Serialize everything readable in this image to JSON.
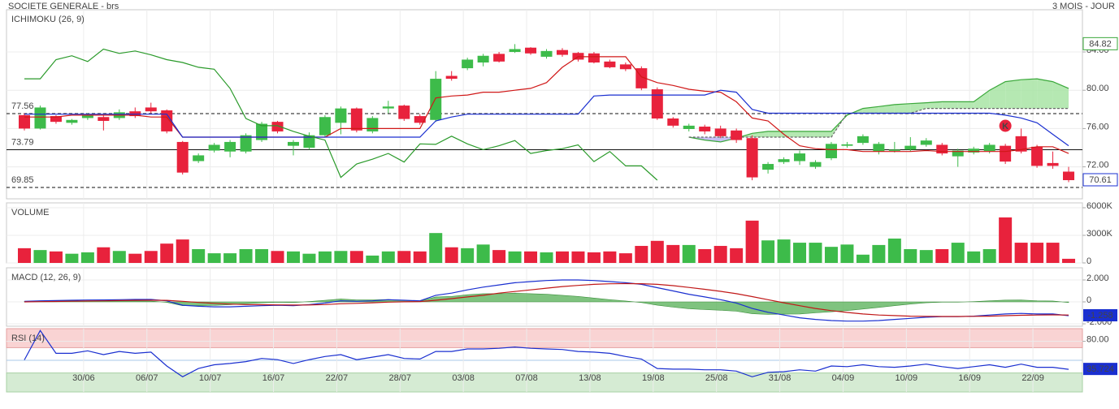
{
  "chart_data": [
    {
      "type": "candlestick",
      "title": "SOCIETE GENERALE - brs",
      "subtitle": "3 MOIS - JOUR",
      "label": "ICHIMOKU (26, 9)",
      "label_color": "#2233aa",
      "open": [
        77.4,
        76.0,
        77.3,
        76.6,
        77.1,
        77.2,
        77.1,
        77.8,
        78.2,
        77.9,
        74.6,
        72.6,
        73.7,
        73.6,
        73.6,
        74.8,
        76.7,
        74.2,
        74.0,
        75.3,
        76.6,
        78.1,
        75.7,
        78.1,
        78.4,
        77.3,
        76.9,
        81.5,
        82.3,
        82.9,
        83.8,
        84.0,
        84.45,
        83.5,
        84.2,
        83.9,
        83.85,
        83.0,
        82.7,
        82.3,
        80.1,
        77.05,
        75.95,
        76.2,
        76.0,
        75.8,
        75.0,
        71.7,
        72.5,
        72.6,
        72.0,
        72.9,
        74.2,
        74.5,
        73.6,
        73.7,
        73.8,
        74.3,
        74.3,
        73.1,
        73.5,
        73.65,
        74.2,
        75.2,
        74.1,
        72.4,
        71.5
      ],
      "high": [
        77.6,
        78.4,
        77.4,
        77.0,
        77.6,
        77.4,
        78.0,
        78.2,
        78.7,
        78.0,
        74.7,
        73.4,
        74.5,
        74.8,
        75.5,
        76.7,
        76.8,
        74.8,
        75.6,
        77.4,
        78.3,
        78.2,
        77.3,
        78.9,
        78.5,
        77.5,
        82.0,
        82.0,
        83.4,
        83.8,
        84.0,
        84.82,
        84.5,
        84.3,
        84.4,
        84.0,
        84.0,
        83.2,
        82.9,
        82.5,
        80.3,
        77.2,
        76.5,
        76.4,
        76.3,
        76.0,
        75.3,
        72.5,
        73.0,
        73.7,
        72.7,
        74.6,
        74.6,
        75.4,
        74.6,
        74.6,
        75.1,
        75.0,
        74.5,
        73.9,
        74.1,
        74.5,
        74.4,
        76.0,
        74.3,
        73.6,
        72.0
      ],
      "low": [
        75.8,
        75.9,
        76.5,
        76.4,
        76.9,
        75.8,
        76.9,
        77.1,
        77.6,
        75.5,
        71.2,
        72.4,
        73.5,
        73.0,
        73.4,
        74.6,
        75.5,
        73.2,
        73.8,
        75.1,
        75.4,
        75.6,
        75.5,
        77.6,
        76.8,
        76.4,
        76.7,
        81.0,
        82.1,
        82.5,
        82.9,
        83.9,
        83.7,
        83.3,
        83.5,
        83.0,
        82.8,
        82.3,
        82.0,
        80.0,
        76.9,
        76.1,
        75.7,
        75.4,
        75.0,
        74.5,
        70.6,
        71.3,
        72.3,
        72.2,
        71.8,
        72.7,
        74.0,
        74.3,
        73.3,
        73.5,
        73.6,
        74.1,
        73.2,
        72.0,
        73.3,
        73.4,
        72.3,
        73.4,
        71.9,
        71.8,
        70.4
      ],
      "close": [
        76.0,
        78.2,
        76.7,
        76.9,
        77.4,
        76.8,
        77.7,
        77.3,
        77.8,
        75.7,
        71.4,
        73.2,
        74.3,
        74.6,
        75.3,
        76.5,
        75.7,
        74.6,
        75.3,
        77.2,
        78.1,
        75.8,
        77.1,
        78.3,
        77.0,
        76.6,
        81.2,
        81.2,
        83.2,
        83.6,
        83.0,
        84.3,
        83.85,
        84.1,
        83.7,
        83.2,
        82.9,
        82.4,
        82.2,
        80.2,
        77.05,
        76.3,
        76.3,
        75.7,
        75.2,
        74.8,
        70.9,
        72.3,
        72.8,
        73.4,
        72.5,
        74.4,
        74.35,
        75.2,
        74.4,
        73.8,
        74.2,
        74.75,
        73.4,
        73.7,
        73.9,
        74.3,
        72.55,
        73.6,
        72.1,
        72.1,
        70.61
      ],
      "up_color": "#3dbb4a",
      "down_color": "#e8223c",
      "lines": [
        {
          "color": "#d01818",
          "values": [
            77.2,
            77.2,
            77.2,
            77.4,
            77.4,
            77.4,
            77.4,
            77.4,
            77.2,
            77.2,
            75.1,
            75.1,
            75.1,
            75.1,
            75.1,
            75.1,
            75.1,
            75.1,
            75.1,
            75.1,
            76.0,
            76.0,
            76.0,
            76.0,
            76.0,
            76.0,
            79.2,
            79.4,
            79.5,
            79.8,
            79.8,
            80.0,
            80.2,
            80.8,
            82.4,
            83.5,
            83.5,
            83.5,
            83.5,
            81.4,
            80.8,
            80.5,
            80.1,
            79.9,
            79.8,
            78.8,
            77.1,
            76.8,
            75.4,
            74.2,
            73.9,
            73.8,
            73.8,
            73.6,
            73.6,
            73.6,
            73.6,
            73.7,
            73.6,
            73.6,
            73.6,
            73.6,
            73.6,
            73.8,
            74.1,
            74.1,
            73.4
          ]
        },
        {
          "color": "#1a2fd0",
          "values": [
            77.5,
            77.5,
            77.5,
            77.5,
            77.5,
            77.5,
            77.5,
            77.5,
            77.5,
            77.5,
            75.1,
            75.1,
            75.1,
            75.1,
            75.1,
            75.1,
            75.1,
            75.1,
            75.1,
            75.1,
            75.1,
            75.1,
            75.1,
            75.1,
            75.1,
            75.1,
            76.8,
            77.2,
            77.5,
            77.5,
            77.5,
            77.5,
            77.5,
            77.5,
            77.5,
            77.5,
            79.4,
            79.5,
            79.5,
            79.5,
            79.5,
            79.5,
            79.5,
            79.5,
            80.0,
            79.8,
            78.0,
            77.6,
            77.6,
            77.6,
            77.6,
            77.6,
            77.6,
            77.6,
            77.6,
            77.6,
            77.6,
            77.6,
            77.6,
            77.6,
            77.6,
            77.6,
            77.4,
            77.1,
            76.6,
            75.4,
            74.2
          ]
        },
        {
          "color": "#2a9a2a",
          "values": [
            81.2,
            81.2,
            83.2,
            83.6,
            83.0,
            84.3,
            83.85,
            84.1,
            83.7,
            83.2,
            82.9,
            82.4,
            82.2,
            80.2,
            77.05,
            76.3,
            76.3,
            75.7,
            75.2,
            74.8,
            70.9,
            72.3,
            72.8,
            73.4,
            72.5,
            74.4,
            74.35,
            75.2,
            74.4,
            73.8,
            74.2,
            74.75,
            73.4,
            73.7,
            73.9,
            74.3,
            72.55,
            73.6,
            72.1,
            72.1,
            70.61,
            null,
            null,
            null,
            null,
            null,
            null,
            null,
            null,
            null,
            null,
            null,
            null,
            null,
            null,
            null,
            null,
            null,
            null,
            null,
            null,
            null,
            null,
            null,
            null,
            null,
            null
          ]
        }
      ],
      "cloud": {
        "span_a": [
          null,
          null,
          null,
          null,
          null,
          null,
          null,
          null,
          null,
          null,
          null,
          null,
          null,
          null,
          null,
          null,
          null,
          null,
          null,
          null,
          null,
          null,
          null,
          null,
          null,
          null,
          null,
          null,
          null,
          null,
          null,
          null,
          null,
          null,
          null,
          null,
          null,
          null,
          null,
          null,
          null,
          null,
          75.1,
          74.8,
          74.6,
          75.0,
          75.5,
          75.7,
          75.7,
          75.7,
          75.7,
          75.7,
          77.4,
          78.1,
          78.3,
          78.5,
          78.6,
          78.7,
          78.8,
          78.8,
          78.8,
          80.0,
          80.9,
          81.1,
          81.2,
          80.9,
          80.2
        ],
        "span_b": [
          null,
          null,
          null,
          null,
          null,
          null,
          null,
          null,
          null,
          null,
          null,
          null,
          null,
          null,
          null,
          null,
          null,
          null,
          null,
          null,
          null,
          null,
          null,
          null,
          null,
          null,
          null,
          null,
          null,
          null,
          null,
          null,
          null,
          null,
          null,
          null,
          null,
          null,
          null,
          null,
          null,
          null,
          75.1,
          75.1,
          75.1,
          75.1,
          75.1,
          75.1,
          75.1,
          75.1,
          75.1,
          75.1,
          77.6,
          77.6,
          77.6,
          77.6,
          77.6,
          78.1,
          78.1,
          78.1,
          78.1,
          78.1,
          78.1,
          78.1,
          78.1,
          78.1,
          78.1
        ],
        "up_color": "#a8e4a4",
        "down_color": "#bdb4f2",
        "edge_color": "#3aa83a"
      },
      "levels": [
        {
          "value": 77.56,
          "style": "dashed"
        },
        {
          "value": 73.79,
          "style": "solid"
        },
        {
          "value": 69.85,
          "style": "dashed"
        }
      ],
      "annotation": "K",
      "ylim": [
        68.66,
        88.41
      ],
      "yticks": [
        {
          "value": 72,
          "label": "72.00"
        },
        {
          "value": 76,
          "label": "76.00"
        },
        {
          "value": 80,
          "label": "80.00"
        },
        {
          "value": 84,
          "label": "84.00"
        }
      ],
      "grid": true
    },
    {
      "type": "bar",
      "label": "VOLUME",
      "label_color": "#2a9a2a",
      "values": [
        1600000,
        1400000,
        1250000,
        1000000,
        1150000,
        1700000,
        1300000,
        1000000,
        1300000,
        2100000,
        2550000,
        1500000,
        1050000,
        1050000,
        1500000,
        1500000,
        1300000,
        1250000,
        1000000,
        1250000,
        1300000,
        1300000,
        800000,
        1250000,
        1300000,
        1250000,
        3250000,
        1700000,
        1600000,
        2000000,
        1400000,
        1250000,
        1250000,
        1150000,
        1250000,
        1250000,
        1150000,
        1250000,
        1050000,
        1850000,
        2400000,
        1950000,
        1950000,
        1500000,
        1850000,
        1600000,
        4600000,
        2450000,
        2550000,
        2200000,
        2200000,
        1750000,
        2000000,
        900000,
        1950000,
        2650000,
        1500000,
        1400000,
        1500000,
        2200000,
        1250000,
        1500000,
        4950000,
        2200000,
        2200000,
        2200000,
        450000
      ],
      "ylim": [
        0,
        6530000
      ],
      "yticks": [
        0,
        {
          "value": 3000000,
          "label": "3000K"
        },
        {
          "value": 6000000,
          "label": "6000K"
        }
      ],
      "grid": true
    },
    {
      "type": "line",
      "label": "MACD (12, 26, 9)",
      "label_color": "#2233aa",
      "series": [
        {
          "color": "#1a2fd0",
          "values": [
            0.05,
            0.1,
            0.12,
            0.15,
            0.17,
            0.18,
            0.2,
            0.22,
            0.22,
            0.1,
            -0.3,
            -0.4,
            -0.45,
            -0.45,
            -0.4,
            -0.35,
            -0.3,
            -0.35,
            -0.25,
            -0.1,
            0.1,
            0.05,
            0.1,
            0.2,
            0.15,
            0.1,
            0.6,
            0.8,
            1.1,
            1.35,
            1.55,
            1.75,
            1.85,
            1.95,
            2.0,
            2.0,
            1.95,
            1.85,
            1.75,
            1.6,
            1.3,
            1.0,
            0.7,
            0.45,
            0.2,
            -0.1,
            -0.6,
            -0.95,
            -1.2,
            -1.45,
            -1.6,
            -1.7,
            -1.75,
            -1.75,
            -1.7,
            -1.6,
            -1.5,
            -1.4,
            -1.35,
            -1.35,
            -1.3,
            -1.2,
            -1.1,
            -1.05,
            -1.1,
            -1.1,
            -1.258
          ]
        },
        {
          "color": "#c01818",
          "values": [
            0.0,
            0.02,
            0.04,
            0.06,
            0.08,
            0.1,
            0.12,
            0.14,
            0.15,
            0.14,
            0.05,
            -0.05,
            -0.13,
            -0.2,
            -0.24,
            -0.26,
            -0.27,
            -0.29,
            -0.28,
            -0.24,
            -0.17,
            -0.13,
            -0.08,
            -0.02,
            0.01,
            0.03,
            0.15,
            0.3,
            0.45,
            0.6,
            0.8,
            0.95,
            1.1,
            1.25,
            1.4,
            1.5,
            1.6,
            1.65,
            1.67,
            1.66,
            1.6,
            1.48,
            1.32,
            1.15,
            0.96,
            0.75,
            0.48,
            0.2,
            -0.08,
            -0.35,
            -0.6,
            -0.8,
            -0.96,
            -1.1,
            -1.2,
            -1.25,
            -1.3,
            -1.32,
            -1.33,
            -1.33,
            -1.32,
            -1.3,
            -1.26,
            -1.22,
            -1.2,
            -1.18,
            -1.2
          ]
        },
        {
          "color": "#5fb45f",
          "fill": true,
          "values": [
            0.05,
            0.08,
            0.08,
            0.09,
            0.09,
            0.08,
            0.08,
            0.08,
            0.07,
            -0.04,
            -0.35,
            -0.35,
            -0.32,
            -0.25,
            -0.16,
            -0.09,
            -0.03,
            -0.06,
            0.03,
            0.14,
            0.27,
            0.18,
            0.18,
            0.22,
            0.14,
            0.07,
            0.45,
            0.5,
            0.65,
            0.75,
            0.75,
            0.8,
            0.75,
            0.7,
            0.6,
            0.5,
            0.35,
            0.2,
            0.08,
            -0.06,
            -0.3,
            -0.48,
            -0.62,
            -0.7,
            -0.76,
            -0.85,
            -1.08,
            -1.15,
            -1.12,
            -1.1,
            -1.0,
            -0.9,
            -0.79,
            -0.65,
            -0.5,
            -0.35,
            -0.2,
            -0.08,
            -0.02,
            -0.02,
            0.02,
            0.1,
            0.16,
            0.17,
            0.1,
            0.08,
            -0.06
          ]
        }
      ],
      "ylim": [
        -2.22,
        3.11
      ],
      "yticks": [
        {
          "value": -2,
          "label": "-2.000"
        },
        0,
        {
          "value": 2,
          "label": "2.000"
        }
      ],
      "grid": true
    },
    {
      "type": "line",
      "label": "RSI (14)",
      "label_color": "#2233aa",
      "series": [
        {
          "color": "#1a2fd0",
          "values": [
            50.7,
            97,
            61,
            61,
            65,
            59,
            64,
            61,
            63,
            41,
            24,
            37,
            43,
            45,
            48,
            53,
            51,
            45,
            51,
            56,
            59,
            51,
            55,
            59,
            53,
            52,
            64,
            64,
            68,
            68,
            69,
            71,
            69,
            68,
            67,
            64,
            63,
            61,
            56,
            52,
            37,
            36,
            36,
            35,
            35,
            33,
            24,
            31,
            32,
            35,
            33,
            41,
            40,
            43,
            40,
            39,
            41,
            44,
            40,
            37,
            40,
            43,
            39,
            44,
            39,
            39,
            35.724
          ]
        }
      ],
      "overbought": 70,
      "oversold": 30,
      "midline": 50,
      "ylim": [
        0,
        100
      ],
      "yticks": [
        {
          "value": 80,
          "label": "80.00"
        }
      ],
      "categories": [
        null,
        null,
        null,
        null,
        "30/06",
        null,
        null,
        null,
        "06/07",
        null,
        null,
        null,
        "10/07",
        null,
        null,
        null,
        "16/07",
        null,
        null,
        null,
        "22/07",
        null,
        null,
        null,
        "28/07",
        null,
        null,
        null,
        "03/08",
        null,
        null,
        null,
        "07/08",
        null,
        null,
        null,
        "13/08",
        null,
        null,
        null,
        "19/08",
        null,
        null,
        null,
        "25/08",
        null,
        null,
        null,
        "31/08",
        null,
        null,
        null,
        "04/09",
        null,
        null,
        null,
        "10/09",
        null,
        null,
        null,
        "16/09",
        null,
        null,
        null,
        "22/09",
        null,
        null
      ],
      "grid": true
    }
  ]
}
